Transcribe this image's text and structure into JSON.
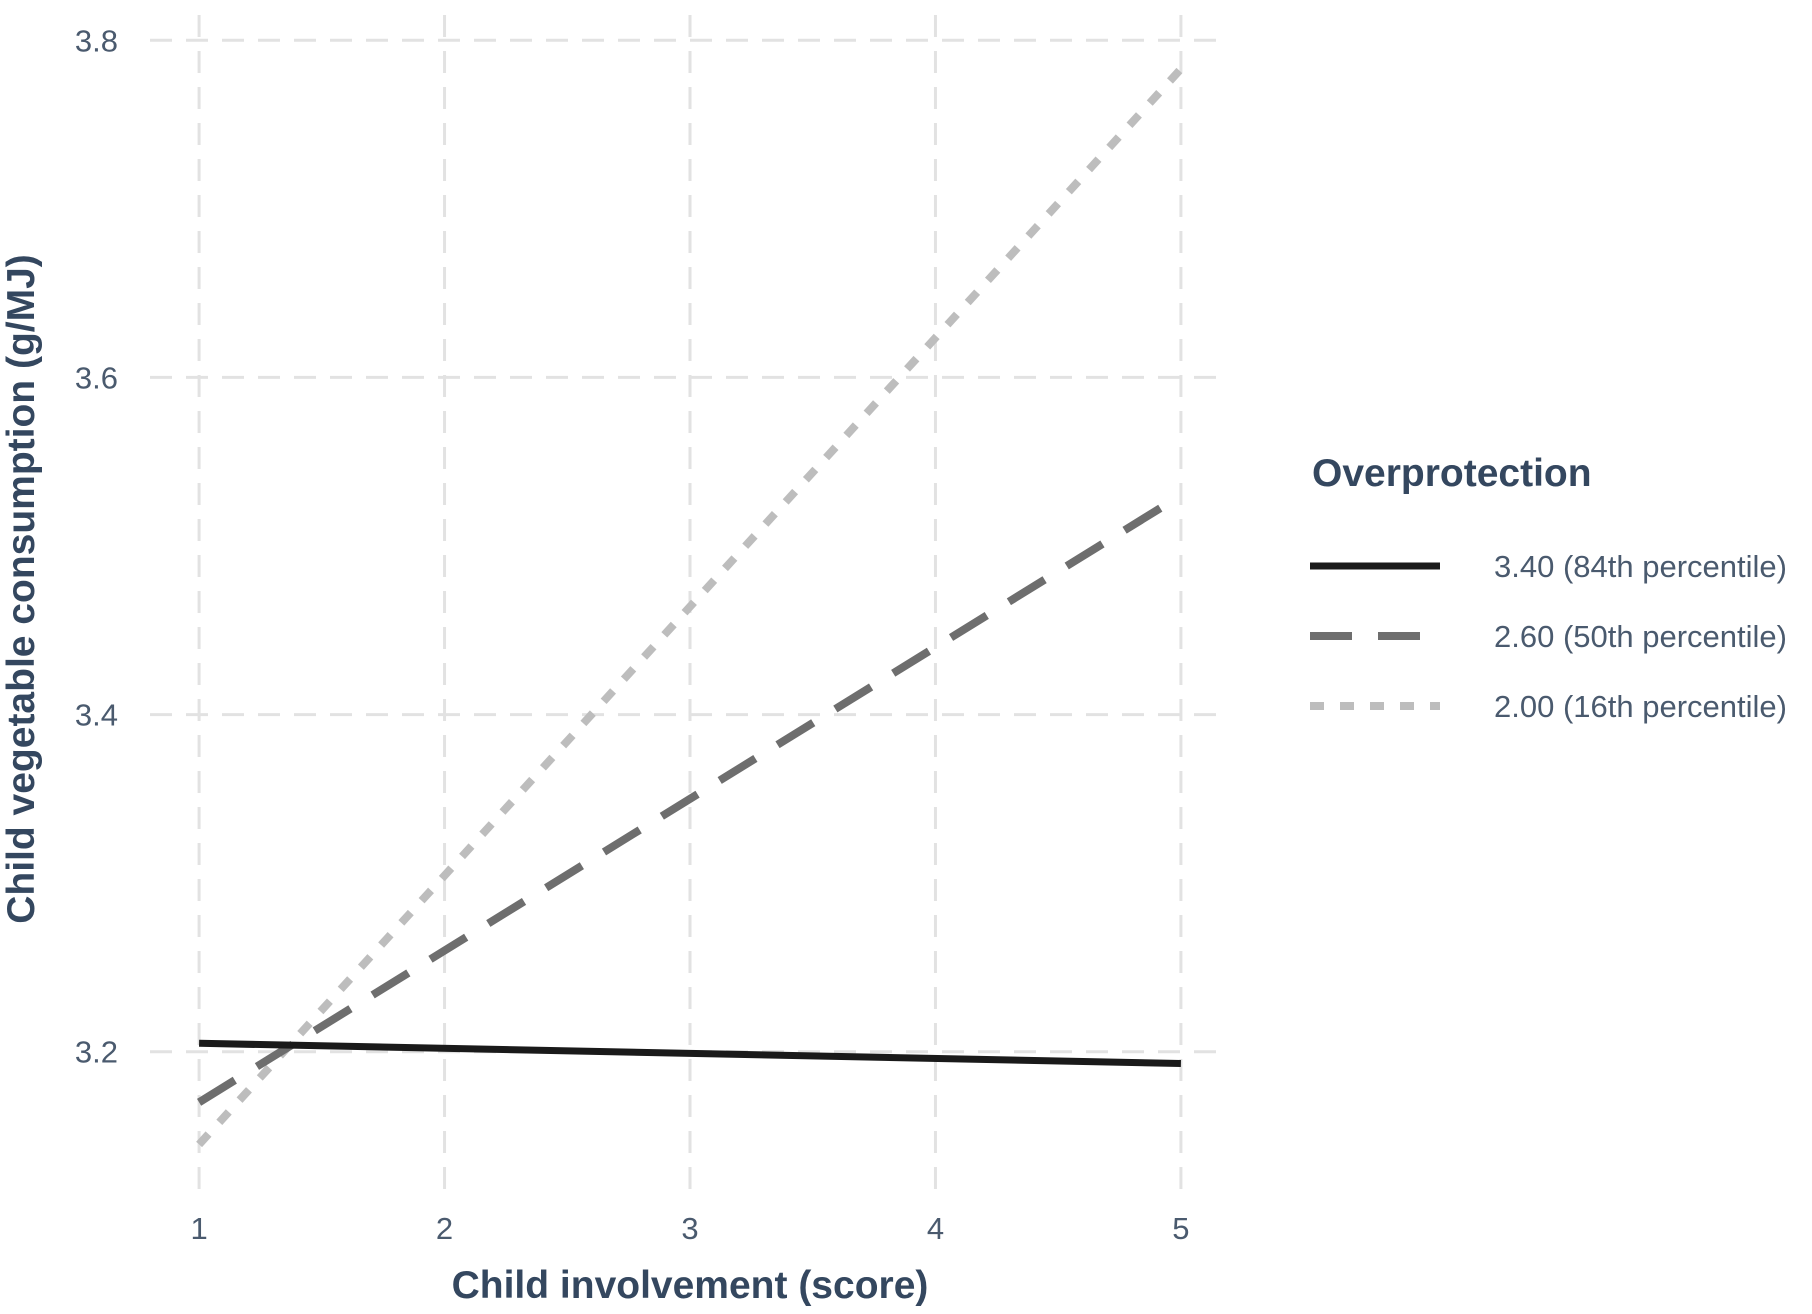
{
  "chart_data": {
    "type": "line",
    "title": "",
    "xlabel": "Child involvement (score)",
    "ylabel": "Child vegetable consumption (g/MJ)",
    "xlim": [
      0.8,
      5.2
    ],
    "ylim": [
      3.115,
      3.815
    ],
    "x_ticks": [
      1,
      2,
      3,
      4,
      5
    ],
    "x_tick_labels": [
      "1",
      "2",
      "3",
      "4",
      "5"
    ],
    "y_ticks": [
      3.2,
      3.4,
      3.6,
      3.8
    ],
    "y_tick_labels": [
      "3.2",
      "3.4",
      "3.6",
      "3.8"
    ],
    "grid": true,
    "legend": {
      "title": "Overprotection",
      "position": "right"
    },
    "series": [
      {
        "name": "3.40 (84th percentile)",
        "x": [
          1,
          5
        ],
        "y": [
          3.205,
          3.193
        ],
        "color": "#1a1a1a",
        "dash": "solid"
      },
      {
        "name": "2.60 (50th percentile)",
        "x": [
          1,
          5
        ],
        "y": [
          3.17,
          3.53
        ],
        "color": "#6e6e6e",
        "dash": "dashed"
      },
      {
        "name": "2.00 (16th percentile)",
        "x": [
          1,
          5
        ],
        "y": [
          3.145,
          3.783
        ],
        "color": "#bdbdbd",
        "dash": "dotted"
      }
    ]
  }
}
